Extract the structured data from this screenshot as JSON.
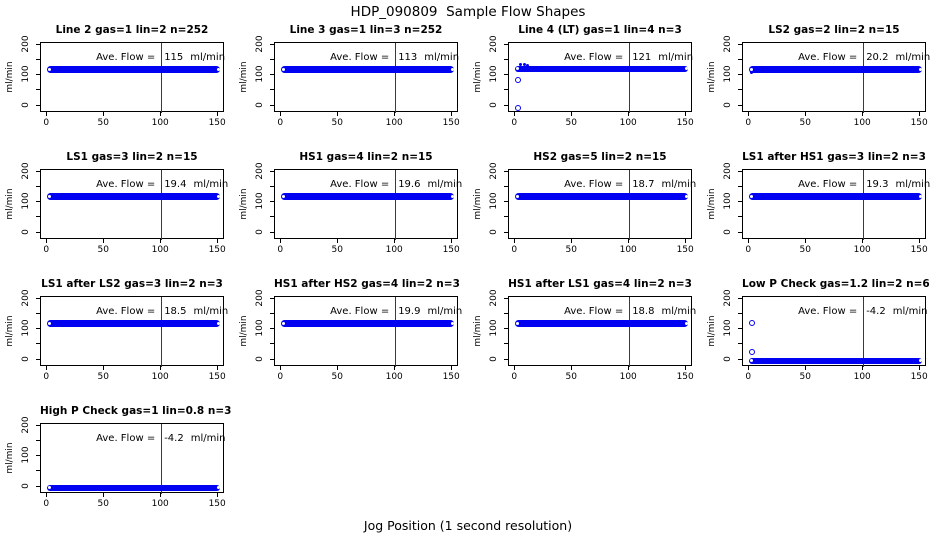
{
  "page": {
    "title": "HDP_090809  Sample Flow Shapes",
    "xlabel": "Jog Position (1 second resolution)"
  },
  "chart_data": {
    "type": "scatter",
    "grid": {
      "cols": 4,
      "rows": 4
    },
    "title": "HDP_090809  Sample Flow Shapes",
    "xlabel": "Jog Position (1 second resolution)",
    "ylabel": "ml/min",
    "x_ticks": [
      0,
      50,
      100,
      150
    ],
    "y_ticks_all": [
      0,
      50,
      100,
      150,
      200
    ],
    "y_ticks_labeled": [
      0,
      100,
      200
    ],
    "xlim": [
      -5.5,
      156
    ],
    "ylim": [
      -24,
      206
    ],
    "ref_line_x": 100,
    "ave_flow_label": "Ave. Flow =",
    "flow_unit": "ml/min",
    "point_color": "#0202f2",
    "band_x_range": [
      0,
      152
    ],
    "band_half_thickness": 11,
    "plots": [
      {
        "title": "Line 2 gas=1 lin=2 n=252",
        "ave_flow_display": "115",
        "band_center": 120,
        "open_points": [],
        "dot_points": []
      },
      {
        "title": "Line 3 gas=1 lin=3 n=252",
        "ave_flow_display": "113",
        "band_center": 120,
        "open_points": [],
        "dot_points": []
      },
      {
        "title": "Line 4 (LT) gas=1 lin=4 n=3",
        "ave_flow_display": "121",
        "band_center": 121,
        "open_points": [
          [
            2,
            85
          ],
          [
            2,
            -8
          ]
        ],
        "dot_points": [
          [
            5,
            136
          ],
          [
            8,
            134
          ],
          [
            11,
            133
          ]
        ]
      },
      {
        "title": "LS2 gas=2 lin=2 n=15",
        "ave_flow_display": "20.2",
        "band_center": 120,
        "open_points": [],
        "dot_points": [
          [
            2,
            109
          ]
        ]
      },
      {
        "title": "LS1 gas=3 lin=2 n=15",
        "ave_flow_display": "19.4",
        "band_center": 119,
        "open_points": [],
        "dot_points": []
      },
      {
        "title": "HS1 gas=4 lin=2 n=15",
        "ave_flow_display": "19.6",
        "band_center": 120,
        "open_points": [],
        "dot_points": []
      },
      {
        "title": "HS2 gas=5 lin=2 n=15",
        "ave_flow_display": "18.7",
        "band_center": 119,
        "open_points": [],
        "dot_points": []
      },
      {
        "title": "LS1 after HS1 gas=3 lin=2 n=3",
        "ave_flow_display": "19.3",
        "band_center": 120,
        "open_points": [],
        "dot_points": []
      },
      {
        "title": "LS1 after LS2 gas=3 lin=2 n=3",
        "ave_flow_display": "18.5",
        "band_center": 119,
        "open_points": [],
        "dot_points": []
      },
      {
        "title": "HS1 after HS2 gas=4 lin=2 n=3",
        "ave_flow_display": "19.9",
        "band_center": 120,
        "open_points": [],
        "dot_points": []
      },
      {
        "title": "HS1 after LS1 gas=4 lin=2 n=3",
        "ave_flow_display": "18.8",
        "band_center": 119,
        "open_points": [],
        "dot_points": []
      },
      {
        "title": "Low P Check gas=1.2 lin=2 n=6",
        "ave_flow_display": "-4.2",
        "band_center": -4,
        "open_points": [
          [
            2,
            120
          ],
          [
            2,
            25
          ]
        ],
        "dot_points": []
      },
      {
        "title": "High P Check gas=1 lin=0.8 n=3",
        "ave_flow_display": "-4.2",
        "band_center": -4,
        "open_points": [],
        "dot_points": []
      }
    ]
  }
}
